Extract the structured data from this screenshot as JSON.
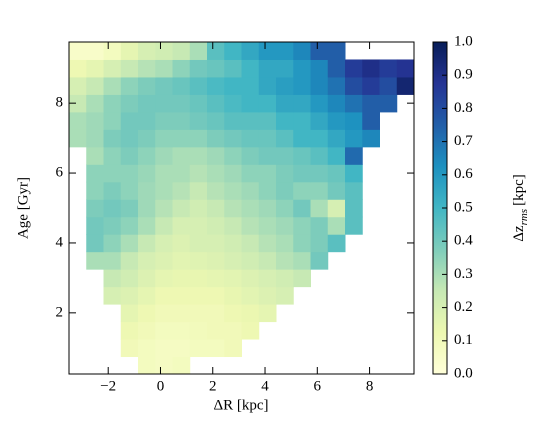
{
  "chart_data": {
    "type": "heatmap",
    "x_label": "ΔR [kpc]",
    "y_label": "Age [Gyr]",
    "colorbar_label": "Δz",
    "colorbar_label_sub": "rms",
    "colorbar_label_unit": "[kpc]",
    "xlim": [
      -3.5,
      9.7
    ],
    "ylim": [
      0.25,
      9.75
    ],
    "xticks": [
      {
        "value": -2,
        "label": "−2"
      },
      0,
      2,
      4,
      6,
      8
    ],
    "yticks": [
      2,
      4,
      6,
      8
    ],
    "x_bins": [
      -3.5,
      -2.84,
      -2.18,
      -1.52,
      -0.86,
      -0.2,
      0.46,
      1.12,
      1.78,
      2.44,
      3.1,
      3.76,
      4.42,
      5.08,
      5.74,
      6.4,
      7.06,
      7.72,
      8.38,
      9.04,
      9.7
    ],
    "y_bins": [
      0.25,
      0.75,
      1.25,
      1.75,
      2.25,
      2.75,
      3.25,
      3.75,
      4.25,
      4.75,
      5.25,
      5.75,
      6.25,
      6.75,
      7.25,
      7.75,
      8.25,
      8.75,
      9.25,
      9.75
    ],
    "clim": [
      0,
      1
    ],
    "cticks": [
      {
        "value": 0,
        "label": "0.0"
      },
      {
        "value": 0.1,
        "label": "0.1"
      },
      {
        "value": 0.2,
        "label": "0.2"
      },
      {
        "value": 0.3,
        "label": "0.3"
      },
      {
        "value": 0.4,
        "label": "0.4"
      },
      {
        "value": 0.5,
        "label": "0.5"
      },
      {
        "value": 0.6,
        "label": "0.6"
      },
      {
        "value": 0.7,
        "label": "0.7"
      },
      {
        "value": 0.8,
        "label": "0.8"
      },
      {
        "value": 0.9,
        "label": "0.9"
      },
      {
        "value": 1,
        "label": "1.0"
      }
    ],
    "colormap": [
      "#ffffd9",
      "#edf8b1",
      "#c7e9b4",
      "#7fcdbb",
      "#41b6c4",
      "#1d91c0",
      "#225ea8",
      "#253494",
      "#081d58"
    ],
    "z": [
      [
        null,
        null,
        null,
        null,
        0.08,
        0.07,
        0.08,
        null,
        null,
        null,
        null,
        null,
        null,
        null,
        null,
        null,
        null,
        null,
        null,
        null
      ],
      [
        null,
        null,
        null,
        0.1,
        0.08,
        0.07,
        0.07,
        0.08,
        0.08,
        0.1,
        null,
        null,
        null,
        null,
        null,
        null,
        null,
        null,
        null,
        null
      ],
      [
        null,
        null,
        null,
        0.12,
        0.1,
        0.08,
        0.08,
        0.09,
        0.1,
        0.1,
        0.12,
        null,
        null,
        null,
        null,
        null,
        null,
        null,
        null,
        null
      ],
      [
        null,
        null,
        null,
        0.15,
        0.12,
        0.1,
        0.1,
        0.1,
        0.1,
        0.12,
        0.13,
        0.15,
        null,
        null,
        null,
        null,
        null,
        null,
        null,
        null
      ],
      [
        null,
        null,
        0.2,
        0.18,
        0.15,
        0.12,
        0.12,
        0.12,
        0.12,
        0.14,
        0.16,
        0.18,
        0.2,
        null,
        null,
        null,
        null,
        null,
        null,
        null
      ],
      [
        null,
        null,
        0.25,
        0.22,
        0.18,
        0.15,
        0.14,
        0.14,
        0.15,
        0.16,
        0.18,
        0.2,
        0.22,
        0.25,
        null,
        null,
        null,
        null,
        null,
        null
      ],
      [
        null,
        0.3,
        0.3,
        0.25,
        0.2,
        0.18,
        0.16,
        0.17,
        0.18,
        0.2,
        0.22,
        0.25,
        0.28,
        0.3,
        0.4,
        null,
        null,
        null,
        null,
        null
      ],
      [
        null,
        0.4,
        0.35,
        0.3,
        0.25,
        0.2,
        0.18,
        0.2,
        0.2,
        0.22,
        0.25,
        0.28,
        0.3,
        0.35,
        0.38,
        0.45,
        null,
        null,
        null,
        null
      ],
      [
        null,
        0.4,
        0.38,
        0.35,
        0.3,
        0.25,
        0.2,
        0.2,
        0.22,
        0.25,
        0.28,
        0.3,
        0.32,
        0.35,
        0.38,
        0.3,
        0.45,
        null,
        null,
        null
      ],
      [
        null,
        0.38,
        0.4,
        0.38,
        0.32,
        0.28,
        0.25,
        0.22,
        0.25,
        0.28,
        0.3,
        0.32,
        0.35,
        0.4,
        0.3,
        0.2,
        0.45,
        null,
        null,
        null
      ],
      [
        null,
        0.35,
        0.38,
        0.35,
        0.32,
        0.3,
        0.28,
        0.25,
        0.28,
        0.3,
        0.32,
        0.35,
        0.38,
        0.35,
        0.35,
        0.4,
        0.45,
        null,
        null,
        null
      ],
      [
        null,
        0.35,
        0.35,
        0.35,
        0.33,
        0.3,
        0.3,
        0.28,
        0.3,
        0.32,
        0.35,
        0.35,
        0.38,
        0.4,
        0.4,
        0.42,
        0.5,
        null,
        null,
        null
      ],
      [
        null,
        0.3,
        0.35,
        0.38,
        0.35,
        0.32,
        0.3,
        0.3,
        0.32,
        0.35,
        0.38,
        0.4,
        0.4,
        0.42,
        0.45,
        0.5,
        0.72,
        null,
        null,
        null
      ],
      [
        0.3,
        0.32,
        0.38,
        0.4,
        0.38,
        0.35,
        0.35,
        0.35,
        0.38,
        0.4,
        0.42,
        0.42,
        0.45,
        0.5,
        0.5,
        0.55,
        0.6,
        0.65,
        null,
        null
      ],
      [
        0.3,
        0.32,
        0.35,
        0.4,
        0.4,
        0.38,
        0.38,
        0.4,
        0.42,
        0.45,
        0.45,
        0.45,
        0.5,
        0.5,
        0.55,
        0.6,
        0.62,
        0.75,
        null,
        null
      ],
      [
        0.25,
        0.3,
        0.35,
        0.38,
        0.4,
        0.4,
        0.4,
        0.42,
        0.45,
        0.48,
        0.5,
        0.5,
        0.55,
        0.55,
        0.6,
        0.65,
        0.7,
        0.75,
        0.75,
        null
      ],
      [
        0.2,
        0.25,
        0.3,
        0.35,
        0.38,
        0.4,
        0.42,
        0.45,
        0.48,
        0.5,
        0.5,
        0.55,
        0.58,
        0.6,
        0.65,
        0.7,
        0.8,
        0.85,
        0.8,
        0.95
      ],
      [
        0.12,
        0.15,
        0.2,
        0.25,
        0.28,
        0.3,
        0.35,
        0.4,
        0.42,
        0.45,
        0.5,
        0.55,
        0.55,
        0.6,
        0.65,
        0.75,
        0.85,
        0.9,
        0.85,
        0.88
      ],
      [
        0.05,
        0.05,
        0.08,
        0.15,
        0.2,
        0.22,
        0.25,
        0.3,
        0.45,
        0.5,
        0.55,
        0.6,
        0.6,
        0.65,
        0.75,
        0.75,
        null,
        null,
        null,
        null
      ]
    ]
  }
}
